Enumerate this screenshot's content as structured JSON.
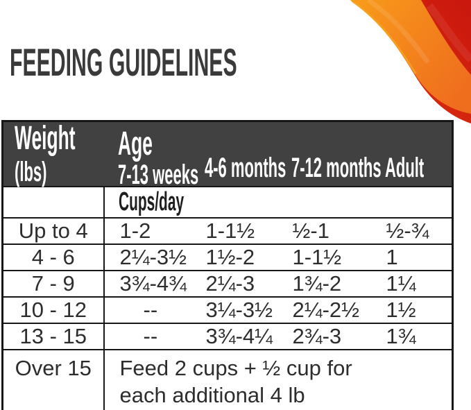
{
  "page": {
    "title": "FEEDING GUIDELINES"
  },
  "colors": {
    "header_bg": "#414141",
    "title_text": "#3A3A3A",
    "table_border": "#161616",
    "body_text": "#2D2D2D",
    "swoosh_red_dark": "#C9170E",
    "swoosh_red": "#E0330F",
    "swoosh_orange": "#EF6E1E",
    "swoosh_orange_light": "#F89C1A",
    "swoosh_edge_highlight": "#F9A21B"
  },
  "table": {
    "weight_header": "Weight",
    "weight_unit": "(lbs)",
    "age_header": "Age",
    "age_columns": [
      "7-13 weeks",
      "4-6 months",
      "7-12 months",
      "Adult"
    ],
    "unit_row_label": "Cups/day",
    "rows": [
      {
        "weight": "Up to 4",
        "values": [
          "1-2",
          "1-1½",
          "½-1",
          "½-¾"
        ]
      },
      {
        "weight": "4 - 6",
        "values": [
          "2¼-3½",
          "1½-2",
          "1-1½",
          "1"
        ]
      },
      {
        "weight": "7 - 9",
        "values": [
          "3¾-4¾",
          "2¼-3",
          "1¾-2",
          "1¼"
        ]
      },
      {
        "weight": "10 - 12",
        "values": [
          "--",
          "3¼-3½",
          "2¼-2½",
          "1½"
        ]
      },
      {
        "weight": "13 - 15",
        "values": [
          "--",
          "3¾-4¼",
          "2¾-3",
          "1¾"
        ]
      }
    ],
    "footer_row": {
      "weight": "Over 15",
      "note_line1": "Feed 2 cups + ½ cup for",
      "note_line2": "each additional 4 lb"
    }
  }
}
